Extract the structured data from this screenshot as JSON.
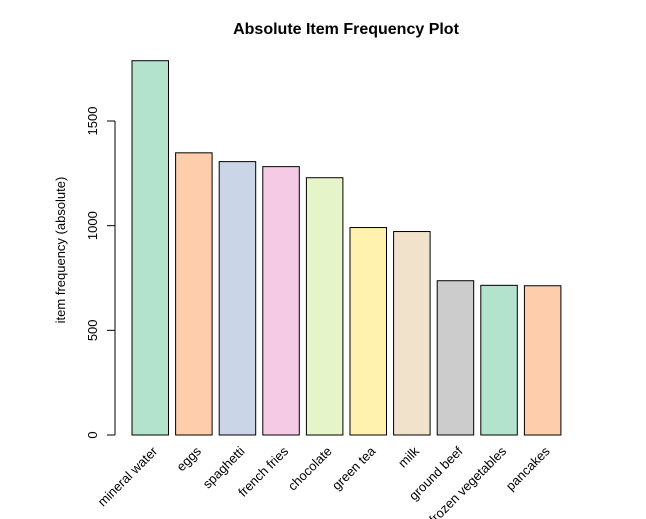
{
  "chart_data": {
    "type": "bar",
    "title": "Absolute Item Frequency Plot",
    "xlabel": "",
    "ylabel": "item frequency (absolute)",
    "ylim": [
      0,
      1800
    ],
    "yticks": [
      0,
      500,
      1000,
      1500
    ],
    "grid": false,
    "legend": "none",
    "categories": [
      "mineral water",
      "eggs",
      "spaghetti",
      "french fries",
      "chocolate",
      "green tea",
      "milk",
      "ground beef",
      "frozen vegetables",
      "pancakes"
    ],
    "values": [
      1788,
      1348,
      1306,
      1282,
      1229,
      991,
      972,
      737,
      715,
      713
    ],
    "colors": [
      "#b3e2cd",
      "#fdcdac",
      "#cbd5e8",
      "#f4cae4",
      "#e6f5c9",
      "#fff2ae",
      "#f1e2cc",
      "#cccccc",
      "#b3e2cd",
      "#fdcdac"
    ]
  }
}
